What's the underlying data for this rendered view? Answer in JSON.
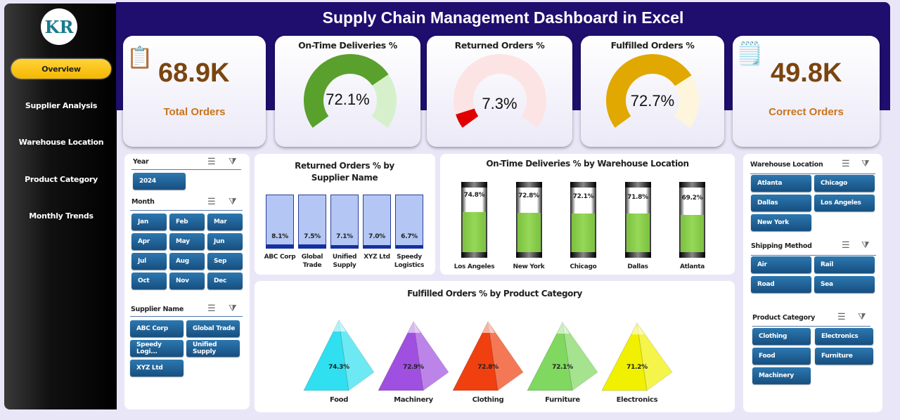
{
  "title": "Supply Chain Management Dashboard in Excel",
  "logo_text": "KR",
  "nav": [
    "Overview",
    "Supplier Analysis",
    "Warehouse Location",
    "Product Category",
    "Monthly Trends"
  ],
  "kpis": {
    "total_orders": {
      "value": "68.9K",
      "label": "Total Orders",
      "icon": "clipboard-order-icon"
    },
    "on_time": {
      "title": "On-Time Deliveries %",
      "value": "72.1%",
      "fraction": 0.721,
      "color": "#5aa02c"
    },
    "returned": {
      "title": "Returned Orders %",
      "value": "7.3%",
      "fraction": 0.073,
      "color": "#e00000"
    },
    "fulfilled": {
      "title": "Fulfilled Orders %",
      "value": "72.7%",
      "fraction": 0.727,
      "color": "#e0a800"
    },
    "correct_orders": {
      "value": "49.8K",
      "label": "Correct Orders",
      "icon": "clipboard-clock-icon"
    }
  },
  "slicers_left": {
    "year": {
      "title": "Year",
      "items": [
        "2024"
      ]
    },
    "month": {
      "title": "Month",
      "items": [
        "Jan",
        "Feb",
        "Mar",
        "Apr",
        "May",
        "Jun",
        "Jul",
        "Aug",
        "Sep",
        "Oct",
        "Nov",
        "Dec"
      ]
    },
    "supplier": {
      "title": "Supplier Name",
      "items": [
        "ABC Corp",
        "Global Trade",
        "Speedy Logi...",
        "Unified Supply",
        "XYZ Ltd"
      ]
    }
  },
  "slicers_right": {
    "warehouse": {
      "title": "Warehouse Location",
      "items": [
        "Atlanta",
        "Chicago",
        "Dallas",
        "Los Angeles",
        "New York"
      ]
    },
    "shipping": {
      "title": "Shipping Method",
      "items": [
        "Air",
        "Rail",
        "Road",
        "Sea"
      ]
    },
    "category": {
      "title": "Product Category",
      "items": [
        "Clothing",
        "Electronics",
        "Food",
        "Furniture",
        "Machinery"
      ]
    }
  },
  "chart_data": [
    {
      "type": "bar",
      "title": "Returned Orders % by Supplier Name",
      "categories": [
        "ABC Corp",
        "Global Trade",
        "Unified Supply",
        "XYZ Ltd",
        "Speedy Logistics"
      ],
      "values": [
        8.1,
        7.5,
        7.1,
        7.0,
        6.7
      ],
      "labels": [
        "8.1%",
        "7.5%",
        "7.1%",
        "7.0%",
        "6.7%"
      ],
      "ylim": [
        0,
        100
      ]
    },
    {
      "type": "bar",
      "title": "On-Time Deliveries % by Warehouse Location",
      "categories": [
        "Los Angeles",
        "New York",
        "Chicago",
        "Dallas",
        "Atlanta"
      ],
      "values": [
        74.8,
        72.8,
        72.1,
        71.8,
        69.2
      ],
      "labels": [
        "74.8%",
        "72.8%",
        "72.1%",
        "71.8%",
        "69.2%"
      ],
      "ylim": [
        0,
        100
      ]
    },
    {
      "type": "bar",
      "title": "Fulfilled Orders % by Product Category",
      "categories": [
        "Food",
        "Machinery",
        "Clothing",
        "Furniture",
        "Electronics"
      ],
      "values": [
        74.3,
        72.9,
        72.8,
        72.1,
        71.2
      ],
      "labels": [
        "74.3%",
        "72.9%",
        "72.8%",
        "72.1%",
        "71.2%"
      ],
      "colors": [
        "#30e0f0",
        "#a050e0",
        "#f04010",
        "#80d860",
        "#f0f000"
      ]
    }
  ]
}
